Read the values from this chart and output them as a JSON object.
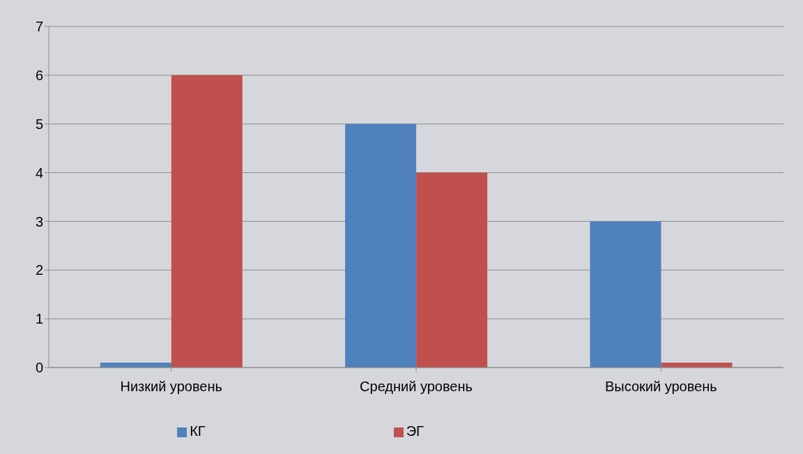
{
  "chart_data": {
    "type": "bar",
    "categories": [
      "Низкий уровень",
      "Средний уровень",
      "Высокий уровень"
    ],
    "series": [
      {
        "name": "КГ",
        "color": "#4f81bd",
        "values": [
          0.1,
          5,
          3
        ]
      },
      {
        "name": "ЭГ",
        "color": "#c0504d",
        "values": [
          6,
          4,
          0.1
        ]
      }
    ],
    "ylim": [
      0,
      7
    ],
    "yticks": [
      0,
      1,
      2,
      3,
      4,
      5,
      6,
      7
    ],
    "grid": "y",
    "legend": "bottom"
  }
}
